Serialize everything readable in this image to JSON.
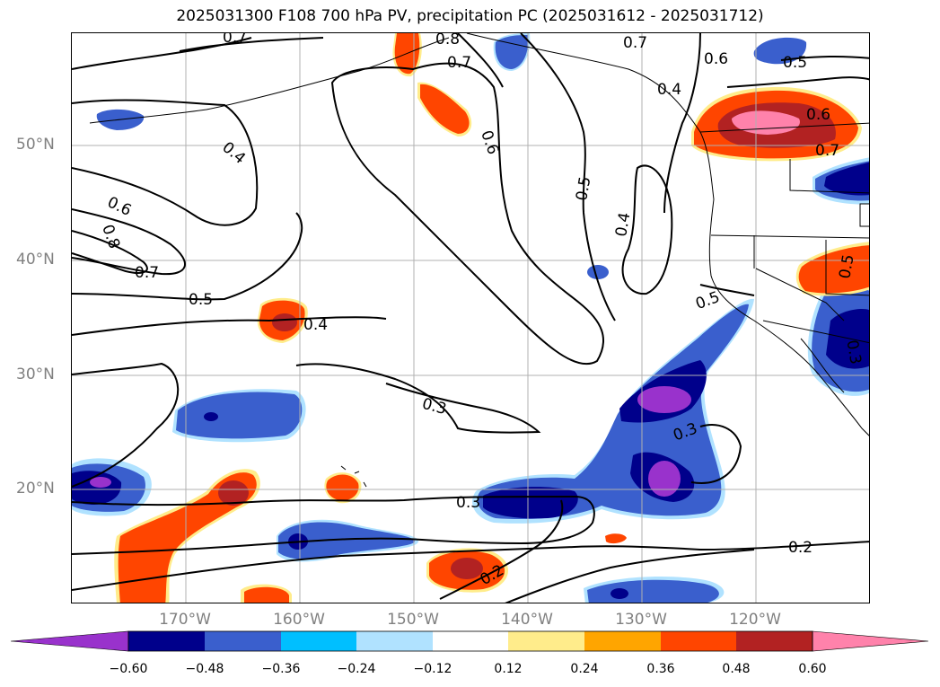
{
  "title": "2025031300 F108 700 hPa PV, precipitation PC (2025031612 - 2025031712)",
  "latitude_labels": [
    "50°N",
    "40°N",
    "30°N",
    "20°N"
  ],
  "longitude_labels": [
    "170°W",
    "160°W",
    "150°W",
    "140°W",
    "130°W",
    "120°W"
  ],
  "colorbar": {
    "ticks": [
      "−0.60",
      "−0.48",
      "−0.36",
      "−0.24",
      "−0.12",
      "0.12",
      "0.24",
      "0.36",
      "0.48",
      "0.60"
    ],
    "colors": [
      "#9932cc",
      "#00008b",
      "#3a5fcd",
      "#00bfff",
      "#b0e2ff",
      "#ffffff",
      "#ffec8b",
      "#ffa500",
      "#ff4500",
      "#b22222",
      "#ff82ab"
    ]
  },
  "contour_labels": [
    "0.7",
    "0.8",
    "0.7",
    "0.7",
    "0.6",
    "0.5",
    "0.4",
    "0.6",
    "0.7",
    "0.6",
    "0.4",
    "0.6",
    "0.8",
    "0.7",
    "0.5",
    "0.4",
    "0.5",
    "0.4",
    "0.5",
    "0.5",
    "0.3",
    "0.3",
    "0.3",
    "0.2",
    "0.2",
    "0.3"
  ],
  "colors": {
    "purple": "#9932cc",
    "navy": "#00008b",
    "blue": "#3a5fcd",
    "cyan": "#00bfff",
    "lightblue": "#b0e2ff",
    "yellow": "#ffec8b",
    "orange": "#ffa500",
    "orangered": "#ff4500",
    "firebrick": "#b22222",
    "pink": "#ff82ab"
  }
}
